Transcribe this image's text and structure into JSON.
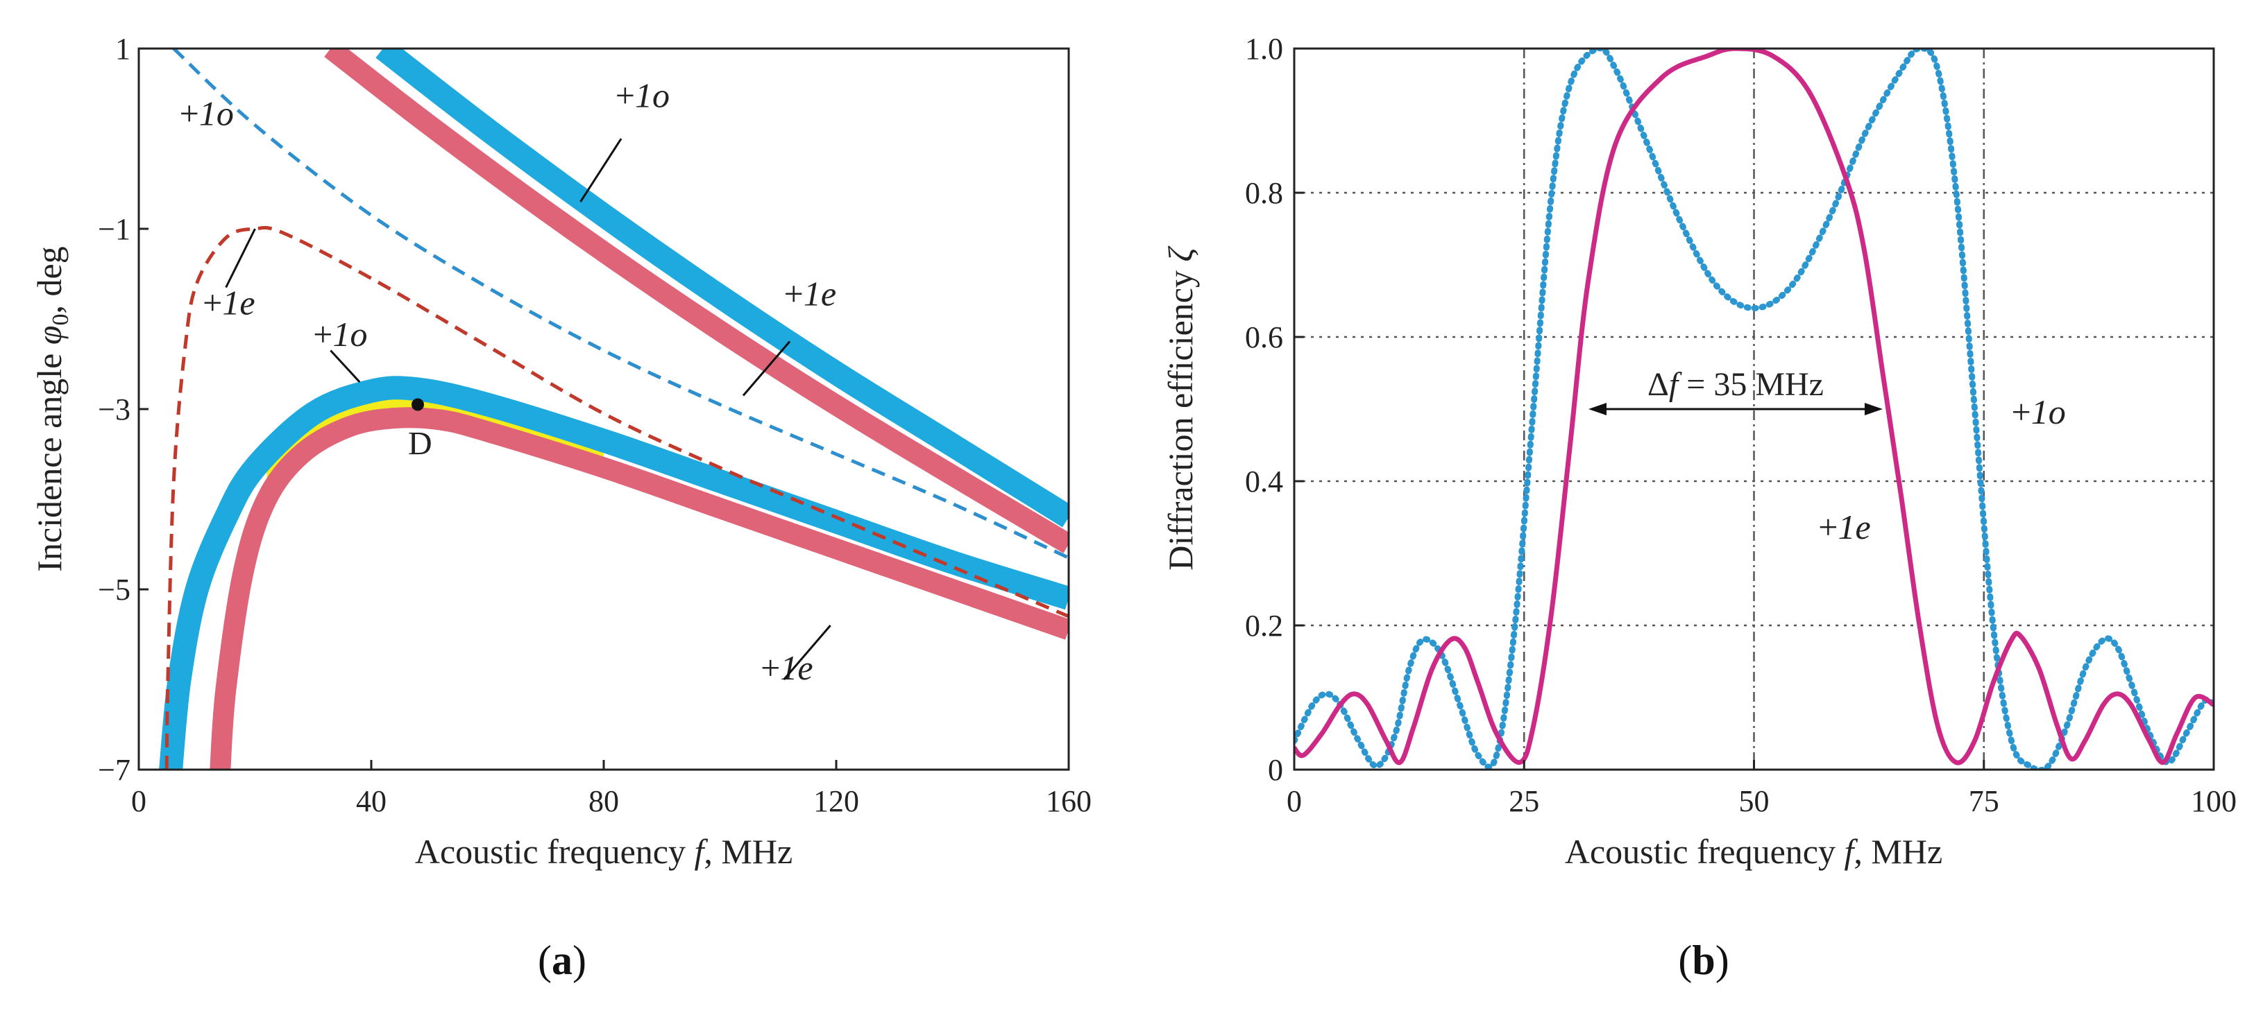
{
  "panels": {
    "a": {
      "label_open": "(",
      "label_letter": "a",
      "label_close": ")"
    },
    "b": {
      "label_open": "(",
      "label_letter": "b",
      "label_close": ")"
    }
  },
  "colors": {
    "blue_band": "#1eaade",
    "red_band": "#e06478",
    "yellow_fill": "#f2ec1c",
    "blue_dashed": "#2e8fcf",
    "red_dashed": "#c0392b",
    "magenta_line": "#cc2a86",
    "blue_dotted": "#2b96cf"
  },
  "chart_data": [
    {
      "type": "line",
      "xlabel_pre": "Acoustic frequency ",
      "xlabel_var": "f",
      "xlabel_post": ", MHz",
      "ylabel_pre": "Incidence angle ",
      "ylabel_var": "φ",
      "ylabel_sub": "0",
      "ylabel_post": ", deg",
      "xlim": [
        0,
        160
      ],
      "ylim": [
        -7,
        1
      ],
      "xticks": [
        "0",
        "40",
        "80",
        "120",
        "160"
      ],
      "yticks": [
        "1",
        "−1",
        "−3",
        "−5",
        "−7"
      ],
      "point": {
        "label": "D",
        "x": 48,
        "y": -2.95
      },
      "series": [
        {
          "name": "+1o",
          "style": "dashed-blue",
          "x": [
            6,
            20,
            40,
            60,
            80,
            100,
            120,
            140,
            160
          ],
          "y": [
            1.0,
            0.15,
            -0.85,
            -1.65,
            -2.35,
            -2.95,
            -3.5,
            -4.05,
            -4.65
          ]
        },
        {
          "name": "+1e",
          "style": "dashed-red",
          "x": [
            4.8,
            5,
            6,
            8,
            10,
            15,
            20,
            25,
            40,
            60,
            80,
            100,
            120,
            140,
            160
          ],
          "y": [
            -7,
            -6.0,
            -3.8,
            -2.3,
            -1.6,
            -1.1,
            -1.0,
            -1.05,
            -1.55,
            -2.3,
            -3.05,
            -3.65,
            -4.2,
            -4.75,
            -5.3
          ]
        },
        {
          "name": "+1o",
          "style": "band-blue",
          "x": [
            42,
            60,
            80,
            100,
            120,
            140,
            160
          ],
          "y": [
            1.0,
            0.1,
            -0.85,
            -1.75,
            -2.6,
            -3.4,
            -4.2
          ]
        },
        {
          "name": "+1e",
          "style": "band-red",
          "x": [
            33,
            50,
            70,
            90,
            110,
            130,
            160
          ],
          "y": [
            1.0,
            0.15,
            -0.8,
            -1.7,
            -2.55,
            -3.35,
            -4.5
          ]
        },
        {
          "name": "+1o",
          "style": "band-blue",
          "x": [
            5.5,
            7,
            10,
            15,
            20,
            30,
            40,
            48,
            60,
            80,
            100,
            120,
            140,
            160
          ],
          "y": [
            -7,
            -6.0,
            -5.0,
            -4.2,
            -3.65,
            -3.05,
            -2.8,
            -2.78,
            -2.95,
            -3.35,
            -3.8,
            -4.25,
            -4.7,
            -5.1
          ]
        },
        {
          "name": "+1e",
          "style": "band-red",
          "x": [
            14,
            15,
            18,
            22,
            28,
            36,
            44,
            52,
            60,
            80,
            100,
            120,
            140,
            160
          ],
          "y": [
            -7,
            -6.1,
            -4.8,
            -4.0,
            -3.5,
            -3.2,
            -3.1,
            -3.12,
            -3.25,
            -3.65,
            -4.1,
            -4.55,
            -5.0,
            -5.45
          ]
        }
      ],
      "annotations": [
        {
          "text": "+1o",
          "x": 7,
          "y": 0.15
        },
        {
          "text": "+1e",
          "x": 11,
          "y": -1.95
        },
        {
          "text": "+1o",
          "x": 30,
          "y": -2.3
        },
        {
          "text": "+1o",
          "x": 82,
          "y": 0.35
        },
        {
          "text": "+1e",
          "x": 111,
          "y": -1.85
        },
        {
          "text": "+1e",
          "x": 107,
          "y": -6.0
        }
      ]
    },
    {
      "type": "line",
      "xlabel_pre": "Acoustic frequency ",
      "xlabel_var": "f",
      "xlabel_post": ", MHz",
      "ylabel_pre": "Diffraction efficiency ",
      "ylabel_var": "ζ",
      "xlim": [
        0,
        100
      ],
      "ylim": [
        0,
        1.0
      ],
      "xticks": [
        "0",
        "25",
        "50",
        "75",
        "100"
      ],
      "yticks": [
        "0",
        "0.2",
        "0.4",
        "0.6",
        "0.8",
        "1.0"
      ],
      "grid": true,
      "bandwidth": {
        "label_pre": "Δ",
        "label_var": "f",
        "label_post": " = 35 MHz",
        "x_start": 32,
        "x_end": 64,
        "y": 0.5
      },
      "series": [
        {
          "name": "+1e",
          "style": "solid-magenta",
          "x": [
            0,
            1,
            3,
            5,
            6.5,
            8,
            10,
            11.5,
            13,
            15,
            17,
            18.5,
            20,
            22,
            24.5,
            26,
            28,
            30,
            32,
            35,
            40,
            45,
            48,
            52,
            56,
            60,
            62,
            64,
            66,
            68,
            70,
            72,
            74,
            76,
            78,
            79,
            81,
            83,
            84.5,
            86,
            88,
            89.5,
            91,
            93,
            94.5,
            96,
            98,
            100
          ],
          "y": [
            0.03,
            0.02,
            0.05,
            0.09,
            0.105,
            0.09,
            0.04,
            0.01,
            0.06,
            0.14,
            0.18,
            0.17,
            0.12,
            0.05,
            0.01,
            0.06,
            0.22,
            0.45,
            0.68,
            0.87,
            0.96,
            0.99,
            1.0,
            0.99,
            0.94,
            0.82,
            0.72,
            0.55,
            0.38,
            0.2,
            0.06,
            0.01,
            0.04,
            0.12,
            0.18,
            0.185,
            0.14,
            0.06,
            0.015,
            0.04,
            0.09,
            0.105,
            0.09,
            0.04,
            0.01,
            0.05,
            0.1,
            0.09
          ]
        },
        {
          "name": "+1o",
          "style": "dotted-blue",
          "x": [
            0,
            2,
            3.5,
            5,
            7,
            9,
            11,
            12.5,
            14,
            16,
            18,
            20,
            22,
            24,
            26,
            28,
            30,
            33,
            35,
            38,
            42,
            46,
            50,
            54,
            58,
            62,
            66,
            68,
            70,
            72,
            74,
            76,
            78,
            80,
            82,
            84,
            86,
            88,
            89.5,
            91,
            93,
            95,
            97,
            99,
            100
          ],
          "y": [
            0.04,
            0.09,
            0.105,
            0.09,
            0.04,
            0.005,
            0.05,
            0.14,
            0.18,
            0.16,
            0.09,
            0.02,
            0.02,
            0.2,
            0.5,
            0.8,
            0.95,
            1.0,
            0.97,
            0.88,
            0.76,
            0.67,
            0.64,
            0.67,
            0.76,
            0.88,
            0.97,
            1.0,
            0.97,
            0.8,
            0.5,
            0.2,
            0.04,
            0.005,
            0.005,
            0.06,
            0.14,
            0.18,
            0.17,
            0.12,
            0.05,
            0.01,
            0.05,
            0.095,
            0.09
          ]
        }
      ],
      "annotations": [
        {
          "text": "+1o",
          "x": 78,
          "y": 0.48
        },
        {
          "text": "+1e",
          "x": 57,
          "y": 0.32
        }
      ]
    }
  ]
}
